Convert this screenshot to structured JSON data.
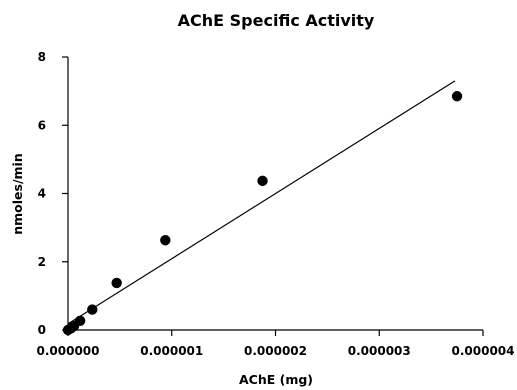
{
  "chart_data": {
    "type": "scatter",
    "title": "AChE Specific Activity",
    "xlabel": "AChE (mg)",
    "ylabel": "nmoles/min",
    "xlim": [
      0,
      4e-06
    ],
    "ylim": [
      0,
      8
    ],
    "x_ticks": [
      "0.000000",
      "0.000001",
      "0.000002",
      "0.000003",
      "0.000004"
    ],
    "y_ticks": [
      "0",
      "2",
      "4",
      "6",
      "8"
    ],
    "grid": false,
    "legend": "none",
    "series": [
      {
        "x": [
          0.0,
          2.9e-08,
          5.8e-08,
          1.17e-07,
          2.34e-07,
          4.69e-07,
          9.38e-07,
          1.875e-06,
          3.75e-06
        ],
        "y": [
          0.0,
          0.05,
          0.12,
          0.27,
          0.6,
          1.38,
          2.63,
          4.37,
          6.85
        ]
      }
    ],
    "trendline": {
      "type": "linear",
      "x_start": 0.0,
      "y_start": 0.18,
      "x_end": 3.73e-06,
      "y_end": 7.3
    },
    "colors": {
      "marker": "#000000",
      "line": "#000000"
    }
  }
}
